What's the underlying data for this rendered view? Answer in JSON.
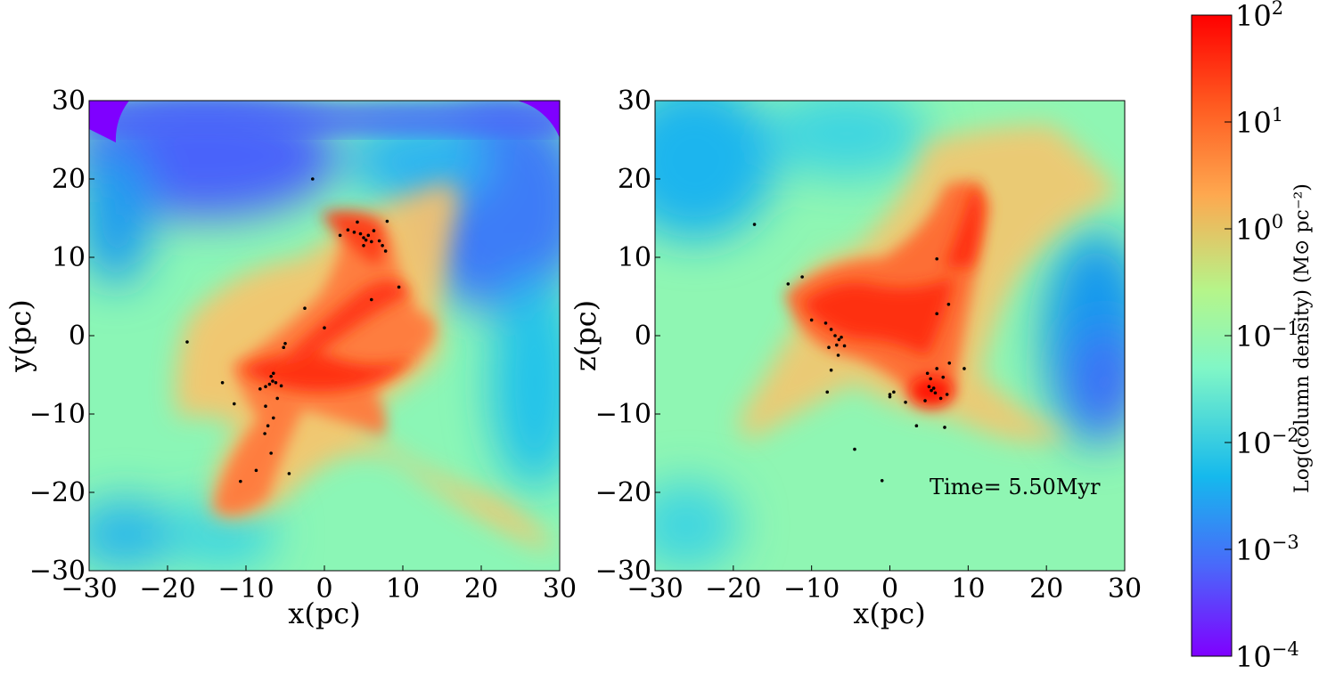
{
  "chart_data": [
    {
      "type": "heatmap",
      "panel": "left",
      "xlabel": "x(pc)",
      "ylabel": "y(pc)",
      "xlim": [
        -30,
        30
      ],
      "ylim": [
        -30,
        30
      ],
      "xticks": [
        -30,
        -20,
        -10,
        0,
        10,
        20,
        30
      ],
      "yticks": [
        -30,
        -20,
        -10,
        0,
        10,
        20,
        30
      ],
      "xtick_labels": [
        "−30",
        "−20",
        "−10",
        "0",
        "10",
        "20",
        "30"
      ],
      "ytick_labels": [
        "−30",
        "−20",
        "−10",
        "0",
        "10",
        "20",
        "30"
      ],
      "stars": [
        [
          -1.5,
          20
        ],
        [
          2,
          12.8
        ],
        [
          3,
          13.5
        ],
        [
          3.8,
          13.2
        ],
        [
          4.2,
          14.5
        ],
        [
          4.6,
          13
        ],
        [
          5,
          12.5
        ],
        [
          5.3,
          12.2
        ],
        [
          5.6,
          12.8
        ],
        [
          6,
          12
        ],
        [
          6.3,
          13.4
        ],
        [
          7,
          12.1
        ],
        [
          7.4,
          11.5
        ],
        [
          7.8,
          10.8
        ],
        [
          8,
          14.6
        ],
        [
          5,
          11.5
        ],
        [
          9.5,
          6.2
        ],
        [
          6,
          4.6
        ],
        [
          -2.5,
          3.5
        ],
        [
          0,
          1
        ],
        [
          -17.5,
          -0.8
        ],
        [
          -5,
          -1
        ],
        [
          -5.2,
          -1.5
        ],
        [
          -6.5,
          -4.8
        ],
        [
          -6.8,
          -5.2
        ],
        [
          -6.6,
          -5.8
        ],
        [
          -7,
          -6.2
        ],
        [
          -6.2,
          -6
        ],
        [
          -7.5,
          -6.5
        ],
        [
          -8.2,
          -6.8
        ],
        [
          -5.5,
          -6.4
        ],
        [
          -13,
          -6
        ],
        [
          -11.5,
          -8.7
        ],
        [
          -7.5,
          -9
        ],
        [
          -6.5,
          -10.5
        ],
        [
          -7.2,
          -11.5
        ],
        [
          -7.6,
          -12.5
        ],
        [
          -6.8,
          -15
        ],
        [
          -4.5,
          -17.6
        ],
        [
          -8.7,
          -17.2
        ],
        [
          -10.7,
          -18.6
        ],
        [
          -6,
          -8
        ]
      ]
    },
    {
      "type": "heatmap",
      "panel": "right",
      "xlabel": "x(pc)",
      "ylabel": "z(pc)",
      "xlim": [
        -30,
        30
      ],
      "ylim": [
        -30,
        30
      ],
      "xticks": [
        -30,
        -20,
        -10,
        0,
        10,
        20,
        30
      ],
      "yticks": [
        -30,
        -20,
        -10,
        0,
        10,
        20,
        30
      ],
      "xtick_labels": [
        "−30",
        "−20",
        "−10",
        "0",
        "10",
        "20",
        "30"
      ],
      "ytick_labels": [
        "−30",
        "−20",
        "−10",
        "0",
        "10",
        "20",
        "30"
      ],
      "annotation": "Time= 5.50Myr",
      "stars": [
        [
          -17.3,
          14.2
        ],
        [
          -13,
          6.6
        ],
        [
          -11.2,
          7.5
        ],
        [
          -10,
          2
        ],
        [
          -8.2,
          1.6
        ],
        [
          -7.5,
          0.8
        ],
        [
          -7,
          0
        ],
        [
          -6.5,
          -0.5
        ],
        [
          -6.2,
          -0.2
        ],
        [
          -6.8,
          -1.2
        ],
        [
          -5.8,
          -1.3
        ],
        [
          -7.8,
          -1.5
        ],
        [
          -6.6,
          -2.5
        ],
        [
          -7.5,
          -4.4
        ],
        [
          -8,
          -7.2
        ],
        [
          -4.5,
          -14.5
        ],
        [
          -1,
          -18.5
        ],
        [
          0,
          -7.5
        ],
        [
          0.5,
          -7.2
        ],
        [
          0,
          -7.8
        ],
        [
          2,
          -8.5
        ],
        [
          3.4,
          -11.5
        ],
        [
          4.5,
          -8.3
        ],
        [
          5,
          -6.5
        ],
        [
          5.3,
          -7
        ],
        [
          5.6,
          -6.7
        ],
        [
          5.8,
          -7.3
        ],
        [
          5.2,
          -5.5
        ],
        [
          4.8,
          -4.8
        ],
        [
          6,
          -4.2
        ],
        [
          6.5,
          -8
        ],
        [
          7.3,
          -7.5
        ],
        [
          7,
          -11.7
        ],
        [
          6.8,
          -5.3
        ],
        [
          7.6,
          -3.5
        ],
        [
          9.5,
          -4.2
        ],
        [
          6,
          2.8
        ],
        [
          7.5,
          4
        ],
        [
          6,
          9.8
        ]
      ]
    }
  ],
  "colorbar": {
    "label": "Log(column density) (M⊙ pc⁻²)",
    "scale": "log",
    "range": [
      0.0001,
      100
    ],
    "tick_labels": [
      "10−⁴",
      "10−³",
      "10−²",
      "10−¹",
      "10⁰",
      "10¹",
      "10²"
    ],
    "tick_bases": [
      "10",
      "10",
      "10",
      "10",
      "10",
      "10",
      "10"
    ],
    "tick_exps": [
      "−4",
      "−3",
      "−2",
      "−1",
      "0",
      "1",
      "2"
    ],
    "colormap": "rainbow",
    "colors": [
      "#7f00ff",
      "#4a68fa",
      "#15b9ed",
      "#81f7c6",
      "#b5f58a",
      "#fea84f",
      "#ff2d0e",
      "#ff0000"
    ]
  }
}
